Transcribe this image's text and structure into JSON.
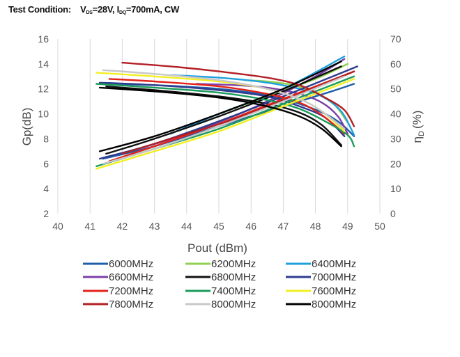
{
  "header": {
    "label": "Test Condition:",
    "vds_name": "DS",
    "vds_value": "=28V,",
    "idq_name": "DQ",
    "idq_value": "=700mA,",
    "mode": "CW"
  },
  "chart_data": {
    "type": "line",
    "title": "",
    "xlabel": "Pout (dBm)",
    "ylabel_left": "Gp(dB)",
    "ylabel_right_symbol": "η",
    "ylabel_right_sub": "D",
    "ylabel_right_unit": "(%)",
    "xlim": [
      40,
      50
    ],
    "ylim_left": [
      2,
      16
    ],
    "ylim_right": [
      0,
      70
    ],
    "x_ticks": [
      40,
      41,
      42,
      43,
      44,
      45,
      46,
      47,
      48,
      49,
      50
    ],
    "y_left_ticks": [
      2,
      4,
      6,
      8,
      10,
      12,
      14,
      16
    ],
    "y_right_ticks": [
      0,
      10,
      20,
      30,
      40,
      50,
      60,
      70
    ],
    "grid": "vertical",
    "legend_position": "bottom",
    "series": [
      {
        "name": "6000MHz",
        "color": "#1f5fa8",
        "gain": {
          "x": [
            41.4,
            43,
            45,
            46.5,
            47.5,
            48.3,
            48.8,
            49.2
          ],
          "y": [
            12.4,
            12.3,
            12.0,
            11.5,
            10.8,
            10.0,
            9.2,
            8.2
          ]
        },
        "eff": {
          "x": [
            41.4,
            43,
            45,
            47,
            48.5,
            49.2
          ],
          "y": [
            22,
            27,
            35,
            43,
            49,
            52
          ]
        }
      },
      {
        "name": "6200MHz",
        "color": "#8fd14f",
        "gain": {
          "x": [
            45.8,
            46.5,
            47.3,
            48.0,
            48.6,
            49.0
          ],
          "y": [
            12.7,
            12.6,
            12.3,
            11.7,
            10.7,
            9.3
          ]
        },
        "eff": {
          "x": [
            45.0,
            46.5,
            48.0,
            49.0
          ],
          "y": [
            40,
            47,
            54,
            60
          ]
        }
      },
      {
        "name": "6400MHz",
        "color": "#1fa0dd",
        "gain": {
          "x": [
            43.5,
            45,
            46.5,
            47.5,
            48.2,
            48.8,
            49.2
          ],
          "y": [
            13.1,
            12.9,
            12.5,
            12.0,
            11.4,
            10.2,
            8.3
          ]
        },
        "eff": {
          "x": [
            43.5,
            45,
            47,
            48.9
          ],
          "y": [
            32,
            40,
            50,
            63
          ]
        }
      },
      {
        "name": "6600MHz",
        "color": "#7b3fa8",
        "gain": {
          "x": [
            44.3,
            45.5,
            46.5,
            47.5,
            48.2,
            48.7,
            49.0
          ],
          "y": [
            12.4,
            12.3,
            12.1,
            11.6,
            10.9,
            9.8,
            8.4
          ]
        },
        "eff": {
          "x": [
            42.5,
            44,
            46,
            48,
            48.9
          ],
          "y": [
            26,
            32,
            42,
            55,
            62
          ]
        }
      },
      {
        "name": "6800MHz",
        "color": "#111111",
        "gain": {
          "x": [
            41.5,
            43,
            45,
            46.5,
            47.5,
            48.2,
            48.8
          ],
          "y": [
            12.2,
            11.9,
            11.4,
            10.8,
            10.1,
            9.1,
            7.5
          ]
        },
        "eff": {
          "x": [
            41.5,
            43,
            45,
            47,
            48.8
          ],
          "y": [
            24,
            30,
            39,
            49,
            59
          ]
        }
      },
      {
        "name": "7000MHz",
        "color": "#2e3b8f",
        "gain": {
          "x": [
            41.3,
            43,
            45,
            46.5,
            47.5,
            48.3,
            48.9
          ],
          "y": [
            12.5,
            12.3,
            11.9,
            11.4,
            10.6,
            9.7,
            8.2
          ]
        },
        "eff": {
          "x": [
            41.3,
            43,
            45,
            47,
            49.3
          ],
          "y": [
            22,
            28,
            37,
            47,
            59
          ]
        }
      },
      {
        "name": "7200MHz",
        "color": "#e2231a",
        "gain": {
          "x": [
            41.6,
            43,
            45,
            46.5,
            47.5,
            48.2,
            48.9
          ],
          "y": [
            12.8,
            12.6,
            12.2,
            11.6,
            10.9,
            9.9,
            8.4
          ]
        },
        "eff": {
          "x": [
            41.6,
            43,
            45,
            47,
            49.2
          ],
          "y": [
            21,
            27,
            36,
            46,
            57
          ]
        }
      },
      {
        "name": "7400MHz",
        "color": "#1a9a5a",
        "gain": {
          "x": [
            41.2,
            43,
            45,
            46.5,
            47.5,
            48.3,
            49.0,
            49.2
          ],
          "y": [
            12.4,
            12.1,
            11.7,
            11.1,
            10.4,
            9.4,
            8.3,
            7.4
          ]
        },
        "eff": {
          "x": [
            41.2,
            43,
            45,
            47,
            49.2
          ],
          "y": [
            19,
            26,
            34,
            44,
            55
          ]
        }
      },
      {
        "name": "7600MHz",
        "color": "#f2ef22",
        "gain": {
          "x": [
            41.2,
            43,
            45,
            46.5,
            47.5,
            48.2,
            48.9
          ],
          "y": [
            13.3,
            13.0,
            12.6,
            12.0,
            11.2,
            10.2,
            8.6
          ]
        },
        "eff": {
          "x": [
            41.2,
            43,
            45,
            47,
            49.2
          ],
          "y": [
            18,
            25,
            33,
            43,
            54
          ]
        }
      },
      {
        "name": "7800MHz",
        "color": "#b21f24",
        "gain": {
          "x": [
            42.0,
            43.5,
            45,
            46.5,
            47.5,
            48.3,
            48.9,
            49.2
          ],
          "y": [
            14.1,
            13.8,
            13.4,
            12.9,
            12.3,
            11.3,
            10.3,
            9.0
          ]
        },
        "eff": {
          "x": [
            42.0,
            43.5,
            45.5,
            47.5,
            49.2
          ],
          "y": [
            24,
            30,
            38,
            48,
            57
          ]
        }
      },
      {
        "name": "8000MHz",
        "color": "#c8c8c8",
        "gain": {
          "x": [
            41.4,
            43,
            45,
            46.5,
            47.5,
            48.2,
            48.9
          ],
          "y": [
            13.5,
            13.2,
            12.7,
            12.0,
            11.2,
            10.2,
            8.8
          ]
        },
        "eff": {
          "x": [
            41.4,
            43,
            45,
            47,
            48.9
          ],
          "y": [
            20,
            26,
            35,
            45,
            55
          ]
        }
      },
      {
        "name": "8000MHz",
        "color": "#000000",
        "gain": {
          "x": [
            41.3,
            43,
            45,
            46.5,
            47.5,
            48.2,
            48.8
          ],
          "y": [
            12.1,
            11.8,
            11.3,
            10.6,
            9.8,
            8.8,
            7.4
          ]
        },
        "eff": {
          "x": [
            41.3,
            43,
            45,
            47,
            48.8
          ],
          "y": [
            25,
            31,
            40,
            50,
            61
          ]
        }
      }
    ]
  }
}
